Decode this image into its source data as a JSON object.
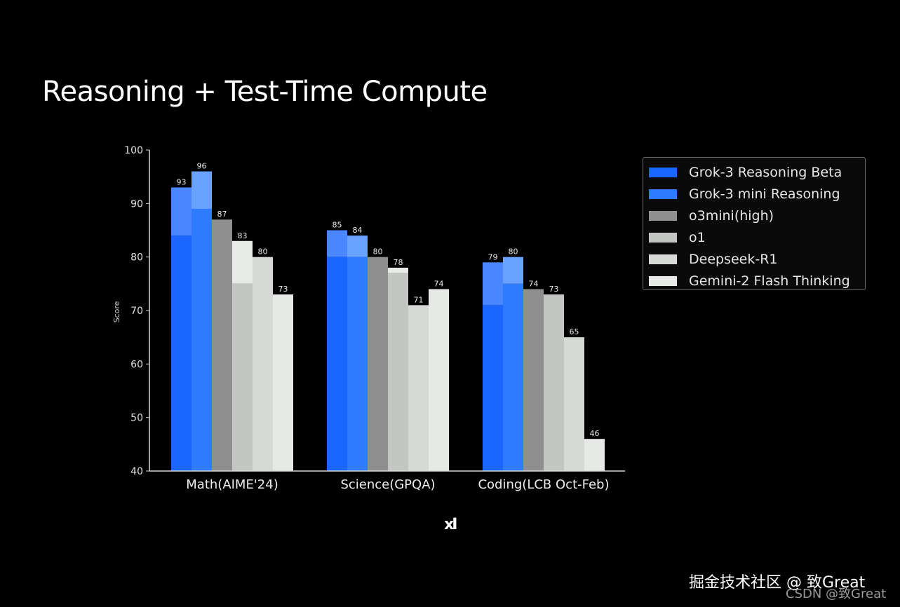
{
  "title": "Reasoning + Test-Time Compute",
  "logo": "xI",
  "watermark": {
    "line1": "掘金技术社区 @ 致Great",
    "line2": "CSDN @致Great"
  },
  "chart_data": {
    "type": "bar",
    "ylabel": "Score",
    "xlabel": "",
    "ylim": [
      40,
      100
    ],
    "yticks": [
      40,
      50,
      60,
      70,
      80,
      90,
      100
    ],
    "categories": [
      "Math(AIME'24)",
      "Science(GPQA)",
      "Coding(LCB Oct-Feb)"
    ],
    "legend_position": "top-right",
    "series": [
      {
        "name": "Grok-3 Reasoning Beta",
        "values": [
          93,
          85,
          79
        ],
        "base_values": [
          84,
          80,
          71
        ],
        "color": "#1a66ff",
        "top_color": "#4a86ff"
      },
      {
        "name": "Grok-3 mini Reasoning",
        "values": [
          96,
          84,
          80
        ],
        "base_values": [
          89,
          80,
          75
        ],
        "color": "#2f7bff",
        "top_color": "#6aa2ff"
      },
      {
        "name": "o3mini(high)",
        "values": [
          87,
          80,
          74
        ],
        "color": "#8f8f8f"
      },
      {
        "name": "o1",
        "values": [
          83,
          78,
          73
        ],
        "base_values": [
          75,
          77,
          null
        ],
        "color": "#c4c6c4",
        "top_color": "#e9ebe9"
      },
      {
        "name": "Deepseek-R1",
        "values": [
          80,
          71,
          65
        ],
        "color": "#d6d9d6"
      },
      {
        "name": "Gemini-2 Flash Thinking",
        "values": [
          73,
          74,
          46
        ],
        "color": "#e6e9e6"
      }
    ],
    "data_labels": [
      [
        "93",
        "85",
        "79"
      ],
      [
        "96",
        "84",
        "80"
      ],
      [
        "87",
        "80",
        "74"
      ],
      [
        "83",
        "78",
        "73"
      ],
      [
        "80",
        "71",
        "65"
      ],
      [
        "73",
        "74",
        "46"
      ]
    ]
  }
}
